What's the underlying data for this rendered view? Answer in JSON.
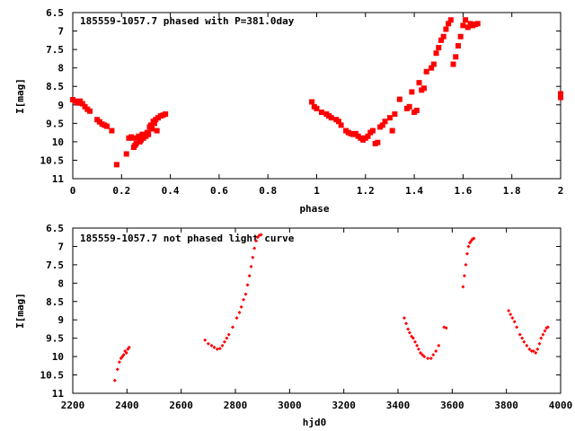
{
  "chart_data": [
    {
      "type": "scatter",
      "title": "185559-1057.7 phased with P=381.0day",
      "xlabel": "phase",
      "ylabel": "I[mag]",
      "xlim": [
        0,
        2
      ],
      "ylim": [
        11,
        6.5
      ],
      "y_inverted": true,
      "grid": false,
      "marker_color": "#ff0000",
      "x_ticks": [
        "0",
        "0.2",
        "0.4",
        "0.6",
        "0.8",
        "1",
        "1.2",
        "1.4",
        "1.6",
        "1.8",
        "2"
      ],
      "y_ticks": [
        "6.5",
        "7",
        "7.5",
        "8",
        "8.5",
        "9",
        "9.5",
        "10",
        "10.5",
        "11"
      ],
      "series": [
        {
          "points": [
            [
              0.0,
              8.86
            ],
            [
              0.01,
              8.9
            ],
            [
              0.02,
              8.95
            ],
            [
              0.03,
              8.9
            ],
            [
              0.04,
              8.97
            ],
            [
              0.05,
              9.05
            ],
            [
              0.06,
              9.12
            ],
            [
              0.07,
              9.17
            ],
            [
              0.1,
              9.4
            ],
            [
              0.11,
              9.46
            ],
            [
              0.12,
              9.52
            ],
            [
              0.13,
              9.55
            ],
            [
              0.14,
              9.58
            ],
            [
              0.16,
              9.7
            ],
            [
              0.18,
              10.62
            ],
            [
              0.22,
              10.33
            ],
            [
              0.23,
              9.9
            ],
            [
              0.24,
              9.87
            ],
            [
              0.245,
              9.9
            ],
            [
              0.25,
              10.15
            ],
            [
              0.255,
              10.1
            ],
            [
              0.26,
              10.05
            ],
            [
              0.265,
              9.9
            ],
            [
              0.27,
              9.85
            ],
            [
              0.275,
              10.0
            ],
            [
              0.28,
              9.95
            ],
            [
              0.285,
              9.8
            ],
            [
              0.29,
              9.9
            ],
            [
              0.3,
              9.85
            ],
            [
              0.305,
              9.75
            ],
            [
              0.31,
              9.8
            ],
            [
              0.315,
              9.6
            ],
            [
              0.32,
              9.55
            ],
            [
              0.325,
              9.65
            ],
            [
              0.33,
              9.45
            ],
            [
              0.335,
              9.5
            ],
            [
              0.34,
              9.4
            ],
            [
              0.345,
              9.7
            ],
            [
              0.35,
              9.35
            ],
            [
              0.36,
              9.3
            ],
            [
              0.37,
              9.28
            ],
            [
              0.38,
              9.25
            ],
            [
              0.98,
              8.92
            ],
            [
              0.99,
              9.05
            ],
            [
              1.0,
              9.1
            ],
            [
              1.02,
              9.2
            ],
            [
              1.04,
              9.25
            ],
            [
              1.05,
              9.3
            ],
            [
              1.06,
              9.35
            ],
            [
              1.08,
              9.4
            ],
            [
              1.09,
              9.45
            ],
            [
              1.1,
              9.55
            ],
            [
              1.12,
              9.7
            ],
            [
              1.13,
              9.75
            ],
            [
              1.14,
              9.78
            ],
            [
              1.15,
              9.8
            ],
            [
              1.16,
              9.78
            ],
            [
              1.17,
              9.85
            ],
            [
              1.18,
              9.9
            ],
            [
              1.19,
              9.95
            ],
            [
              1.2,
              9.9
            ],
            [
              1.21,
              9.85
            ],
            [
              1.22,
              9.75
            ],
            [
              1.23,
              9.7
            ],
            [
              1.24,
              10.05
            ],
            [
              1.25,
              10.02
            ],
            [
              1.26,
              9.6
            ],
            [
              1.27,
              9.55
            ],
            [
              1.28,
              9.45
            ],
            [
              1.3,
              9.35
            ],
            [
              1.31,
              9.7
            ],
            [
              1.32,
              9.25
            ],
            [
              1.34,
              8.85
            ],
            [
              1.37,
              9.1
            ],
            [
              1.38,
              9.05
            ],
            [
              1.39,
              8.65
            ],
            [
              1.4,
              9.2
            ],
            [
              1.41,
              9.15
            ],
            [
              1.42,
              8.4
            ],
            [
              1.43,
              8.6
            ],
            [
              1.44,
              8.55
            ],
            [
              1.45,
              8.1
            ],
            [
              1.47,
              8.0
            ],
            [
              1.48,
              7.9
            ],
            [
              1.49,
              7.6
            ],
            [
              1.5,
              7.45
            ],
            [
              1.51,
              7.25
            ],
            [
              1.52,
              7.15
            ],
            [
              1.53,
              6.95
            ],
            [
              1.54,
              6.8
            ],
            [
              1.55,
              6.7
            ],
            [
              1.56,
              7.9
            ],
            [
              1.57,
              7.7
            ],
            [
              1.58,
              7.4
            ],
            [
              1.59,
              7.15
            ],
            [
              1.6,
              6.85
            ],
            [
              1.61,
              6.7
            ],
            [
              1.62,
              6.9
            ],
            [
              1.63,
              6.8
            ],
            [
              1.64,
              6.85
            ],
            [
              1.65,
              6.82
            ],
            [
              1.66,
              6.8
            ],
            [
              2.0,
              8.7
            ],
            [
              2.0,
              8.8
            ]
          ]
        }
      ]
    },
    {
      "type": "scatter",
      "title": "185559-1057.7 not phased light curve",
      "xlabel": "hjd0",
      "ylabel": "I[mag]",
      "xlim": [
        2200,
        4000
      ],
      "ylim": [
        11,
        6.5
      ],
      "y_inverted": true,
      "grid": false,
      "marker_color": "#ff0000",
      "x_ticks": [
        "2200",
        "2400",
        "2600",
        "2800",
        "3000",
        "3200",
        "3400",
        "3600",
        "3800",
        "4000"
      ],
      "y_ticks": [
        "6.5",
        "7",
        "7.5",
        "8",
        "8.5",
        "9",
        "9.5",
        "10",
        "10.5",
        "11"
      ],
      "series": [
        {
          "points": [
            [
              2355,
              10.65
            ],
            [
              2365,
              10.35
            ],
            [
              2372,
              10.15
            ],
            [
              2378,
              10.05
            ],
            [
              2383,
              10.0
            ],
            [
              2388,
              9.95
            ],
            [
              2393,
              9.85
            ],
            [
              2398,
              9.9
            ],
            [
              2403,
              9.8
            ],
            [
              2408,
              9.75
            ],
            [
              2688,
              9.55
            ],
            [
              2700,
              9.65
            ],
            [
              2712,
              9.7
            ],
            [
              2722,
              9.75
            ],
            [
              2733,
              9.8
            ],
            [
              2743,
              9.78
            ],
            [
              2752,
              9.7
            ],
            [
              2760,
              9.6
            ],
            [
              2768,
              9.5
            ],
            [
              2776,
              9.4
            ],
            [
              2790,
              9.2
            ],
            [
              2805,
              8.95
            ],
            [
              2815,
              8.8
            ],
            [
              2822,
              8.65
            ],
            [
              2830,
              8.45
            ],
            [
              2838,
              8.3
            ],
            [
              2845,
              8.05
            ],
            [
              2852,
              7.8
            ],
            [
              2858,
              7.55
            ],
            [
              2864,
              7.3
            ],
            [
              2870,
              7.05
            ],
            [
              2876,
              6.85
            ],
            [
              2882,
              6.75
            ],
            [
              2888,
              6.7
            ],
            [
              2895,
              6.68
            ],
            [
              3423,
              8.95
            ],
            [
              3430,
              9.1
            ],
            [
              3437,
              9.25
            ],
            [
              3443,
              9.35
            ],
            [
              3450,
              9.45
            ],
            [
              3456,
              9.5
            ],
            [
              3463,
              9.6
            ],
            [
              3470,
              9.7
            ],
            [
              3476,
              9.8
            ],
            [
              3483,
              9.9
            ],
            [
              3490,
              9.95
            ],
            [
              3497,
              10.0
            ],
            [
              3510,
              10.05
            ],
            [
              3522,
              10.05
            ],
            [
              3530,
              9.95
            ],
            [
              3540,
              9.85
            ],
            [
              3550,
              9.7
            ],
            [
              3570,
              9.2
            ],
            [
              3578,
              9.22
            ],
            [
              3640,
              8.1
            ],
            [
              3645,
              7.8
            ],
            [
              3650,
              7.5
            ],
            [
              3655,
              7.2
            ],
            [
              3660,
              7.0
            ],
            [
              3665,
              6.9
            ],
            [
              3670,
              6.85
            ],
            [
              3675,
              6.8
            ],
            [
              3680,
              6.78
            ],
            [
              3808,
              8.75
            ],
            [
              3815,
              8.85
            ],
            [
              3822,
              8.95
            ],
            [
              3830,
              9.05
            ],
            [
              3838,
              9.2
            ],
            [
              3850,
              9.4
            ],
            [
              3858,
              9.5
            ],
            [
              3865,
              9.6
            ],
            [
              3875,
              9.7
            ],
            [
              3885,
              9.8
            ],
            [
              3893,
              9.85
            ],
            [
              3900,
              9.85
            ],
            [
              3908,
              9.9
            ],
            [
              3915,
              9.8
            ],
            [
              3922,
              9.65
            ],
            [
              3928,
              9.5
            ],
            [
              3935,
              9.4
            ],
            [
              3942,
              9.3
            ],
            [
              3948,
              9.22
            ],
            [
              3953,
              9.2
            ]
          ]
        }
      ]
    }
  ]
}
